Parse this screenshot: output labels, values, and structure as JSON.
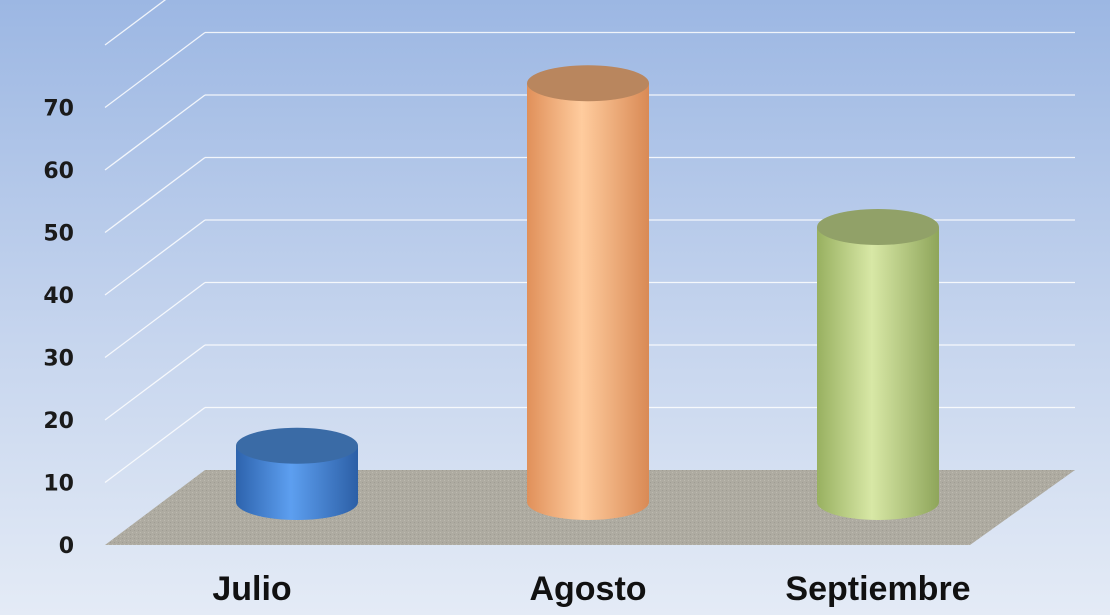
{
  "chart_data": {
    "type": "bar",
    "style": "3d-cylinder",
    "categories": [
      "Julio",
      "Agosto",
      "Septiembre"
    ],
    "values": [
      9,
      67,
      44
    ],
    "colors": [
      "#4f8fe0",
      "#f8b47f",
      "#c3d98c"
    ],
    "ylim": [
      0,
      70
    ],
    "yticks": [
      0,
      10,
      20,
      30,
      40,
      50,
      60,
      70
    ],
    "grid": true,
    "legend": "none",
    "title": "",
    "xlabel": "",
    "ylabel": ""
  }
}
